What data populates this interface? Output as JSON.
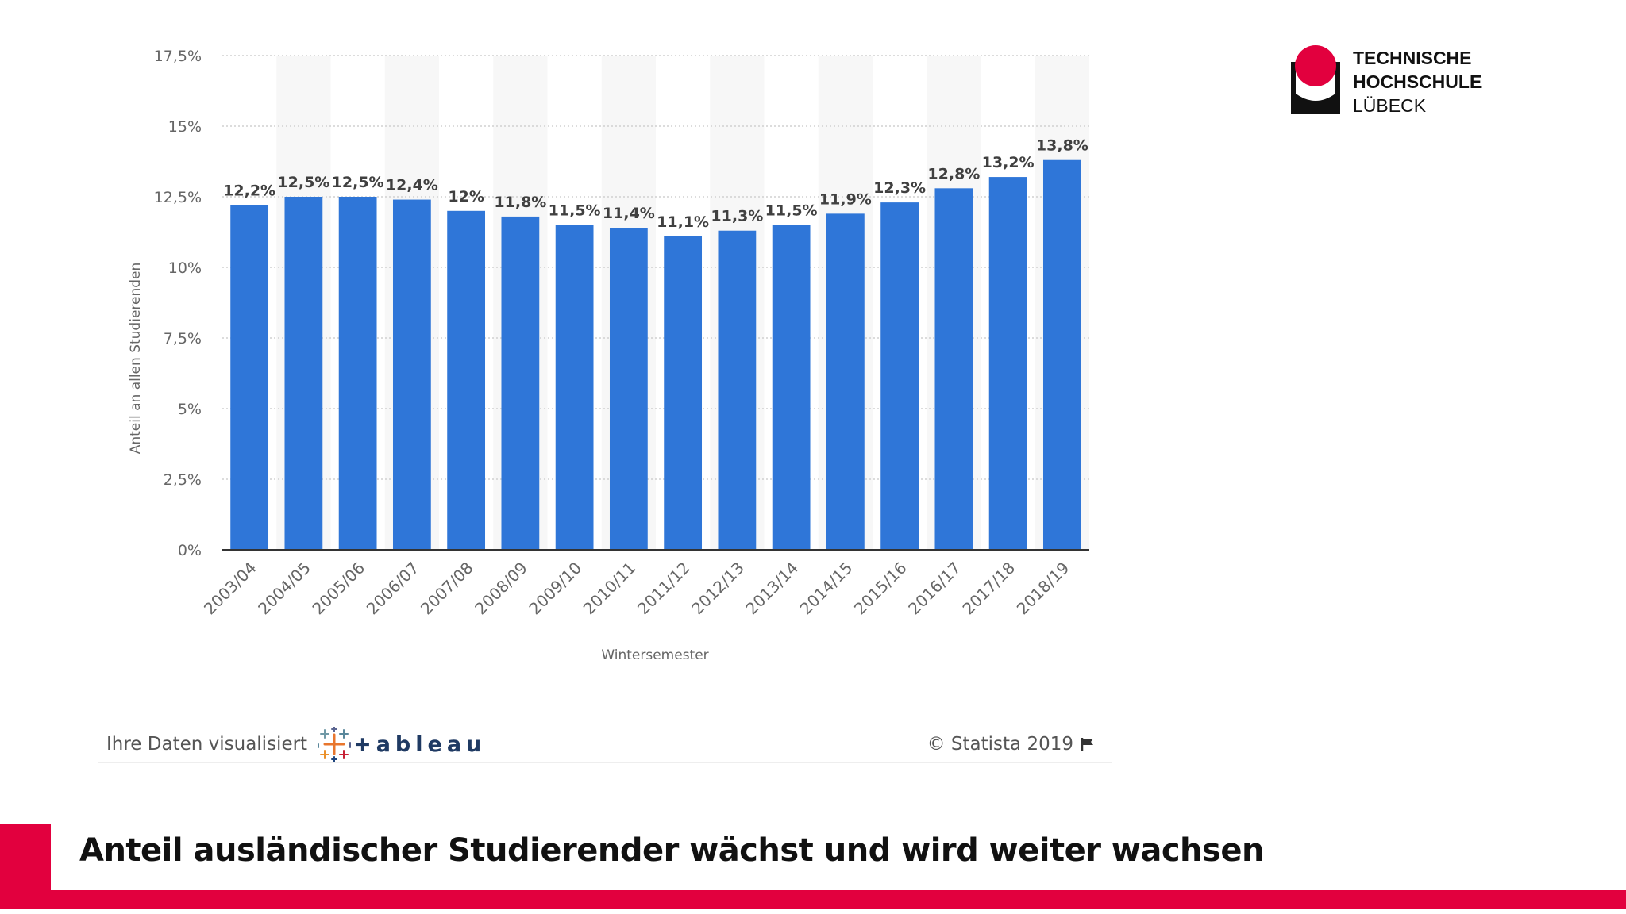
{
  "chart_data": {
    "type": "bar",
    "title": "",
    "xlabel": "Wintersemester",
    "ylabel": "Anteil an allen Studierenden",
    "ylim": [
      0,
      17.5
    ],
    "yticks": [
      0,
      2.5,
      5,
      7.5,
      10,
      12.5,
      15,
      17.5
    ],
    "ytick_labels": [
      "0%",
      "2,5%",
      "5%",
      "7,5%",
      "10%",
      "12,5%",
      "15%",
      "17,5%"
    ],
    "grid": true,
    "legend": "none",
    "categories": [
      "2003/04",
      "2004/05",
      "2005/06",
      "2006/07",
      "2007/08",
      "2008/09",
      "2009/10",
      "2010/11",
      "2011/12",
      "2012/13",
      "2013/14",
      "2014/15",
      "2015/16",
      "2016/17",
      "2017/18",
      "2018/19"
    ],
    "values": [
      12.2,
      12.5,
      12.5,
      12.4,
      12,
      11.8,
      11.5,
      11.4,
      11.1,
      11.3,
      11.5,
      11.9,
      12.3,
      12.8,
      13.2,
      13.8
    ],
    "value_labels": [
      "12,2%",
      "12,5%",
      "12,5%",
      "12,4%",
      "12%",
      "11,8%",
      "11,5%",
      "11,4%",
      "11,1%",
      "11,3%",
      "11,5%",
      "11,9%",
      "12,3%",
      "12,8%",
      "13,2%",
      "13,8%"
    ],
    "bar_color": "#2f76d8"
  },
  "credits": {
    "tableau_text": "Ihre Daten visualisiert",
    "tableau_logo_text": "+ableau",
    "statista_text": "© Statista 2019"
  },
  "logo": {
    "line1": "TECHNISCHE",
    "line2": "HOCHSCHULE",
    "line3": "LÜBECK",
    "accent_color": "#e2003e"
  },
  "slide": {
    "title": "Anteil ausländischer Studierender wächst und wird weiter wachsen",
    "accent_color": "#e2003e"
  },
  "icons": {
    "tableau": "tableau-cross-icon",
    "statista_flag": "flag-icon"
  }
}
